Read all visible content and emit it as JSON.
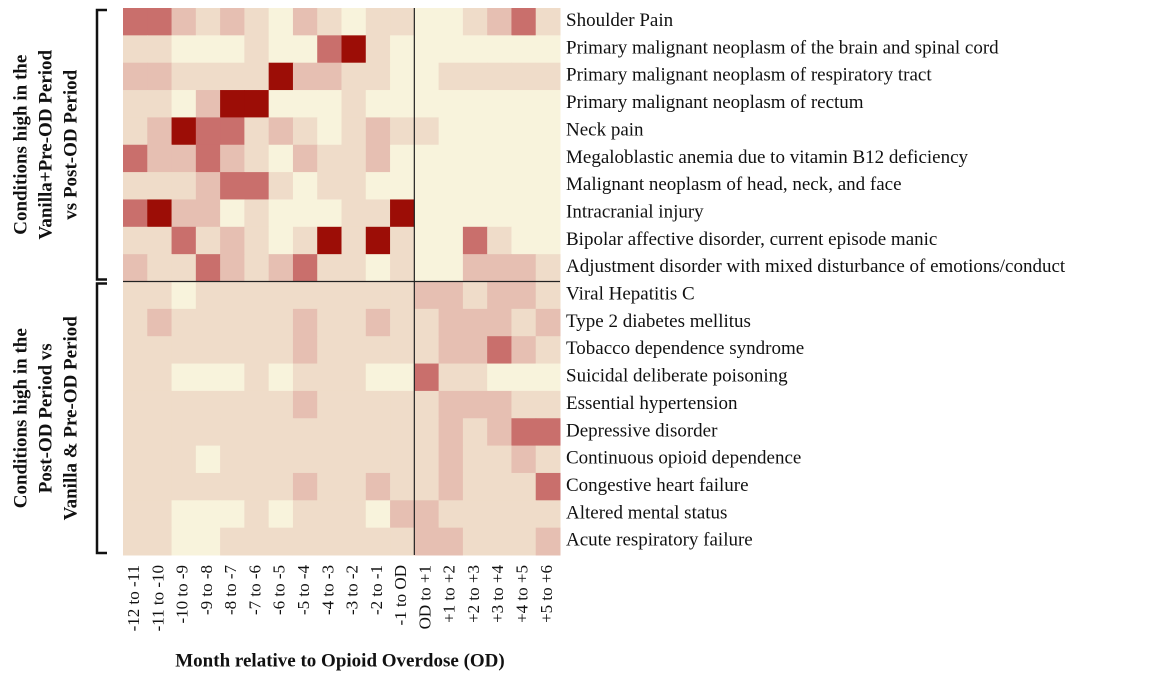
{
  "chart_data": {
    "type": "heatmap",
    "xlabel": "Month relative to Opioid Overdose (OD)",
    "x_categories": [
      "-12 to -11",
      "-11 to -10",
      "-10 to -9",
      "-9 to -8",
      "-8 to -7",
      "-7 to -6",
      "-6 to -5",
      "-5 to -4",
      "-4 to -3",
      "-3 to -2",
      "-2 to -1",
      "-1 to OD",
      "OD to +1",
      "+1 to +2",
      "+2 to +3",
      "+3 to +4",
      "+4 to +5",
      "+5 to +6"
    ],
    "y_categories": [
      "Shoulder Pain",
      "Primary malignant neoplasm of the brain and spinal cord",
      "Primary malignant neoplasm of respiratory tract",
      "Primary malignant neoplasm of rectum",
      "Neck pain",
      "Megaloblastic anemia due to vitamin B12 deficiency",
      "Malignant neoplasm of head, neck, and face",
      "Intracranial injury",
      "Bipolar affective disorder, current episode manic",
      "Adjustment disorder with mixed disturbance of emotions/conduct",
      "Viral Hepatitis C",
      "Type 2 diabetes mellitus",
      "Tobacco dependence syndrome",
      "Suicidal deliberate poisoning",
      "Essential hypertension",
      "Depressive disorder",
      "Continuous opioid dependence",
      "Congestive heart failure",
      "Altered mental status",
      "Acute respiratory failure"
    ],
    "row_groups": [
      {
        "lines": [
          "Conditions high in the",
          "Vanilla+Pre-OD Period",
          "vs Post-OD Period"
        ],
        "rows": [
          0,
          9
        ]
      },
      {
        "lines": [
          "Conditions high in the",
          "Post-OD Period vs",
          "Vanilla & Pre-OD Period"
        ],
        "rows": [
          10,
          19
        ]
      }
    ],
    "divider_column": 12,
    "color_scale": [
      "#f8f3dc",
      "#efdcc9",
      "#e6bfb2",
      "#c96f6c",
      "#9c0d06"
    ],
    "zlim": [
      0,
      4
    ],
    "values": [
      [
        3,
        3,
        2,
        1,
        2,
        1,
        0,
        2,
        1,
        0,
        1,
        1,
        0,
        0,
        1,
        2,
        3,
        1
      ],
      [
        1,
        1,
        0,
        0,
        0,
        1,
        0,
        0,
        3,
        4,
        1,
        0,
        0,
        0,
        0,
        0,
        0,
        0
      ],
      [
        2,
        2,
        1,
        1,
        1,
        1,
        4,
        2,
        2,
        1,
        1,
        0,
        0,
        1,
        1,
        1,
        1,
        1
      ],
      [
        1,
        1,
        0,
        2,
        4,
        4,
        0,
        0,
        0,
        1,
        0,
        0,
        0,
        0,
        0,
        0,
        0,
        0
      ],
      [
        1,
        2,
        4,
        3,
        3,
        1,
        2,
        1,
        0,
        1,
        2,
        1,
        1,
        0,
        0,
        0,
        0,
        0
      ],
      [
        3,
        2,
        2,
        3,
        2,
        1,
        0,
        2,
        1,
        1,
        2,
        0,
        0,
        0,
        0,
        0,
        0,
        0
      ],
      [
        1,
        1,
        1,
        2,
        3,
        3,
        1,
        0,
        1,
        1,
        0,
        0,
        0,
        0,
        0,
        0,
        0,
        0
      ],
      [
        3,
        4,
        2,
        2,
        0,
        1,
        0,
        0,
        0,
        1,
        1,
        4,
        0,
        0,
        0,
        0,
        0,
        0
      ],
      [
        1,
        1,
        3,
        1,
        2,
        1,
        0,
        1,
        4,
        1,
        4,
        1,
        0,
        0,
        3,
        1,
        0,
        0
      ],
      [
        2,
        1,
        1,
        3,
        2,
        1,
        2,
        3,
        1,
        1,
        0,
        1,
        0,
        0,
        2,
        2,
        2,
        1
      ],
      [
        1,
        1,
        0,
        1,
        1,
        1,
        1,
        1,
        1,
        1,
        1,
        1,
        2,
        2,
        1,
        2,
        2,
        1
      ],
      [
        1,
        2,
        1,
        1,
        1,
        1,
        1,
        2,
        1,
        1,
        2,
        1,
        1,
        2,
        2,
        2,
        1,
        2
      ],
      [
        1,
        1,
        1,
        1,
        1,
        1,
        1,
        2,
        1,
        1,
        1,
        1,
        1,
        2,
        2,
        3,
        2,
        1
      ],
      [
        1,
        1,
        0,
        0,
        0,
        1,
        0,
        1,
        1,
        1,
        0,
        0,
        3,
        1,
        1,
        0,
        0,
        0
      ],
      [
        1,
        1,
        1,
        1,
        1,
        1,
        1,
        2,
        1,
        1,
        1,
        1,
        1,
        2,
        2,
        2,
        1,
        1
      ],
      [
        1,
        1,
        1,
        1,
        1,
        1,
        1,
        1,
        1,
        1,
        1,
        1,
        1,
        2,
        1,
        2,
        3,
        3
      ],
      [
        1,
        1,
        1,
        0,
        1,
        1,
        1,
        1,
        1,
        1,
        1,
        1,
        1,
        2,
        1,
        1,
        2,
        1
      ],
      [
        1,
        1,
        1,
        1,
        1,
        1,
        1,
        2,
        1,
        1,
        2,
        1,
        1,
        2,
        1,
        1,
        1,
        3
      ],
      [
        1,
        1,
        0,
        0,
        0,
        1,
        0,
        1,
        1,
        1,
        0,
        2,
        2,
        1,
        1,
        1,
        1,
        1
      ],
      [
        1,
        1,
        0,
        0,
        1,
        1,
        1,
        1,
        1,
        1,
        1,
        1,
        2,
        2,
        1,
        1,
        1,
        2
      ]
    ]
  }
}
